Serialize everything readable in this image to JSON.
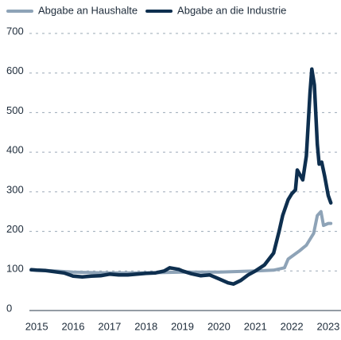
{
  "chart_data": {
    "type": "line",
    "xlim": [
      2014.8,
      2023.35
    ],
    "xticks": [
      2015,
      2016,
      2017,
      2018,
      2019,
      2020,
      2021,
      2022,
      2023
    ],
    "ylim": [
      0,
      700
    ],
    "yticks": [
      0,
      100,
      200,
      300,
      400,
      500,
      600,
      700
    ],
    "grid": true,
    "legend": "top",
    "series": [
      {
        "name": "Abgabe an Haushalte",
        "color": "#8ea3b7",
        "x": [
          2014.85,
          2015.5,
          2016,
          2017,
          2018,
          2019,
          2020,
          2021,
          2021.5,
          2021.8,
          2021.9,
          2022.2,
          2022.4,
          2022.5,
          2022.6,
          2022.7,
          2022.8,
          2022.87,
          2023.0,
          2023.07
        ],
        "values": [
          103,
          100,
          97,
          95,
          95,
          97,
          97,
          100,
          102,
          108,
          130,
          150,
          165,
          180,
          195,
          240,
          250,
          215,
          220,
          220
        ]
      },
      {
        "name": "Abgabe an die Industrie",
        "color": "#0e2f4f",
        "x": [
          2014.85,
          2015.0,
          2015.25,
          2015.5,
          2015.75,
          2016.0,
          2016.25,
          2016.5,
          2016.75,
          2017.0,
          2017.25,
          2017.5,
          2017.75,
          2018.0,
          2018.25,
          2018.5,
          2018.65,
          2018.9,
          2019.0,
          2019.25,
          2019.5,
          2019.75,
          2020.0,
          2020.25,
          2020.4,
          2020.6,
          2020.8,
          2021.0,
          2021.25,
          2021.5,
          2021.65,
          2021.75,
          2021.9,
          2022.0,
          2022.1,
          2022.15,
          2022.3,
          2022.4,
          2022.5,
          2022.55,
          2022.62,
          2022.7,
          2022.75,
          2022.82,
          2022.9,
          2023.0,
          2023.07
        ],
        "values": [
          103,
          102,
          101,
          98,
          95,
          87,
          85,
          87,
          88,
          92,
          90,
          90,
          92,
          94,
          95,
          100,
          108,
          104,
          100,
          93,
          88,
          90,
          80,
          70,
          67,
          76,
          90,
          100,
          115,
          145,
          200,
          240,
          280,
          295,
          305,
          355,
          330,
          390,
          550,
          610,
          570,
          420,
          370,
          375,
          340,
          290,
          272
        ]
      }
    ]
  }
}
